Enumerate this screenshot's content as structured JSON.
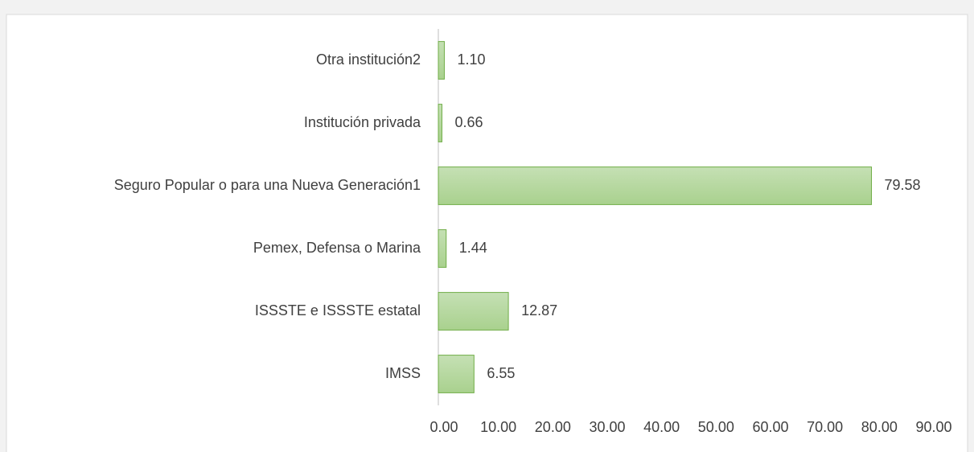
{
  "chart_data": {
    "type": "hbar",
    "categories": [
      "Otra institución2",
      "Institución privada",
      "Seguro Popular o para una Nueva Generación1",
      "Pemex, Defensa o Marina",
      "ISSSTE e ISSSTE estatal",
      "IMSS"
    ],
    "values": [
      1.1,
      0.66,
      79.58,
      1.44,
      12.87,
      6.55
    ],
    "value_labels": [
      "1.10",
      "0.66",
      "79.58",
      "1.44",
      "12.87",
      "6.55"
    ],
    "color": "#a9d18e",
    "xlim": [
      0,
      90
    ],
    "xticks": [
      {
        "value": 0,
        "label": "0.00"
      },
      {
        "value": 10,
        "label": "10.00"
      },
      {
        "value": 20,
        "label": "20.00"
      },
      {
        "value": 30,
        "label": "30.00"
      },
      {
        "value": 40,
        "label": "40.00"
      },
      {
        "value": 50,
        "label": "50.00"
      },
      {
        "value": 60,
        "label": "60.00"
      },
      {
        "value": 70,
        "label": "70.00"
      },
      {
        "value": 80,
        "label": "80.00"
      },
      {
        "value": 90,
        "label": "90.00"
      }
    ],
    "grid": false
  }
}
